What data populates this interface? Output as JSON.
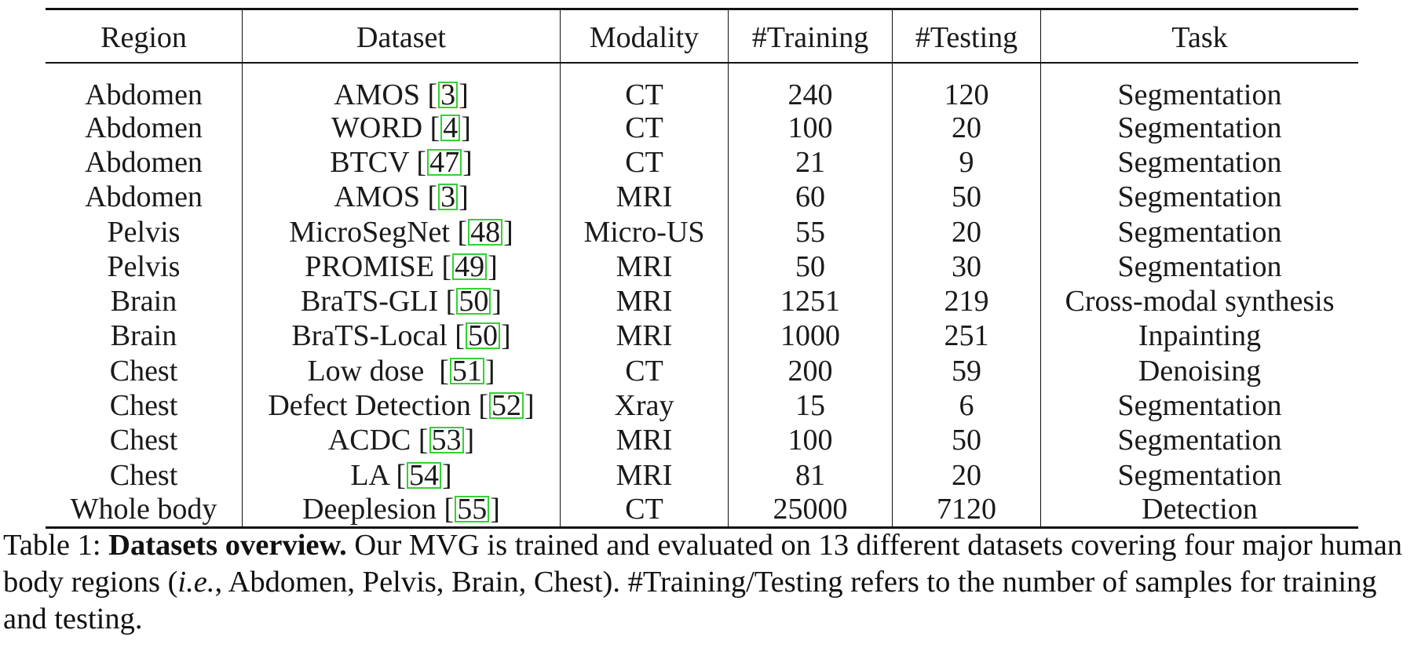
{
  "table": {
    "headers": [
      "Region",
      "Dataset",
      "Modality",
      "#Training",
      "#Testing",
      "Task"
    ],
    "rows": [
      {
        "region": "Abdomen",
        "dataset": "AMOS [",
        "ref": "3",
        "close": "]",
        "modality": "CT",
        "training": "240",
        "testing": "120",
        "task": "Segmentation"
      },
      {
        "region": "Abdomen",
        "dataset": "WORD [",
        "ref": "4",
        "close": "]",
        "modality": "CT",
        "training": "100",
        "testing": "20",
        "task": "Segmentation"
      },
      {
        "region": "Abdomen",
        "dataset": "BTCV [",
        "ref": "47",
        "close": "]",
        "modality": "CT",
        "training": "21",
        "testing": "9",
        "task": "Segmentation"
      },
      {
        "region": "Abdomen",
        "dataset": "AMOS [",
        "ref": "3",
        "close": "]",
        "modality": "MRI",
        "training": "60",
        "testing": "50",
        "task": "Segmentation"
      },
      {
        "region": "Pelvis",
        "dataset": "MicroSegNet [",
        "ref": "48",
        "close": "]",
        "modality": "Micro-US",
        "training": "55",
        "testing": "20",
        "task": "Segmentation"
      },
      {
        "region": "Pelvis",
        "dataset": "PROMISE [",
        "ref": "49",
        "close": "]",
        "modality": "MRI",
        "training": "50",
        "testing": "30",
        "task": "Segmentation"
      },
      {
        "region": "Brain",
        "dataset": "BraTS-GLI [",
        "ref": "50",
        "close": "]",
        "modality": "MRI",
        "training": "1251",
        "testing": "219",
        "task": "Cross-modal synthesis"
      },
      {
        "region": "Brain",
        "dataset": "BraTS-Local [",
        "ref": "50",
        "close": "]",
        "modality": "MRI",
        "training": "1000",
        "testing": "251",
        "task": "Inpainting"
      },
      {
        "region": "Chest",
        "dataset": "Low dose  [",
        "ref": "51",
        "close": "]",
        "modality": "CT",
        "training": "200",
        "testing": "59",
        "task": "Denoising"
      },
      {
        "region": "Chest",
        "dataset": "Defect Detection [",
        "ref": "52",
        "close": "]",
        "modality": "Xray",
        "training": "15",
        "testing": "6",
        "task": "Segmentation"
      },
      {
        "region": "Chest",
        "dataset": "ACDC [",
        "ref": "53",
        "close": "]",
        "modality": "MRI",
        "training": "100",
        "testing": "50",
        "task": "Segmentation"
      },
      {
        "region": "Chest",
        "dataset": "LA [",
        "ref": "54",
        "close": "]",
        "modality": "MRI",
        "training": "81",
        "testing": "20",
        "task": "Segmentation"
      },
      {
        "region": "Whole body",
        "dataset": "Deeplesion [",
        "ref": "55",
        "close": "]",
        "modality": "CT",
        "training": "25000",
        "testing": "7120",
        "task": "Detection"
      }
    ]
  },
  "caption": {
    "label": "Table 1: ",
    "title": "Datasets overview.",
    "text1": " Our MVG is trained and evaluated on 13 different datasets covering four major human body regions (",
    "ie": "i.e.",
    "text2": ", Abdomen, Pelvis, Brain, Chest). #Training/Testing refers to the number of samples for training and testing."
  }
}
